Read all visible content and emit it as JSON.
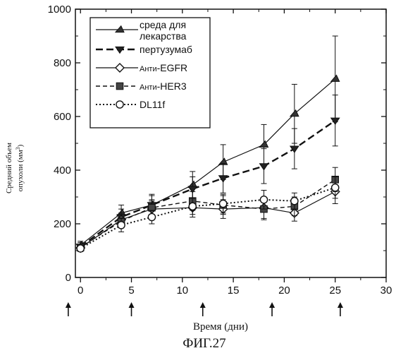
{
  "figure_caption": "ФИГ.27",
  "chart_data": {
    "type": "line",
    "title": "",
    "xlabel": "Время (дни)",
    "ylabel_line1": "Средний объем",
    "ylabel_line2": "опухоли (мм",
    "ylabel_unit_sup": "3",
    "ylabel_line2_end": ")",
    "xlim": [
      -0.5,
      30
    ],
    "ylim": [
      0,
      1000
    ],
    "x_ticks": [
      0,
      5,
      10,
      15,
      20,
      25,
      30
    ],
    "y_ticks": [
      0,
      200,
      400,
      600,
      800,
      1000
    ],
    "x_tick_labels": [
      "0",
      "5",
      "10",
      "15",
      "20",
      "25",
      "30"
    ],
    "y_tick_labels": [
      "0",
      "200",
      "400",
      "600",
      "800",
      "1000"
    ],
    "dosing_days": [
      -1.2,
      5,
      12,
      18.8,
      25.5
    ],
    "legend_placement": "top-left",
    "series": [
      {
        "name": "среда для лекарства",
        "name_line2": "лекарства",
        "name_line1": "среда для",
        "marker": "triangle",
        "dash": "solid",
        "x": [
          0,
          4,
          7,
          11,
          14,
          18,
          21,
          25
        ],
        "y": [
          120,
          240,
          270,
          345,
          430,
          495,
          610,
          740
        ],
        "err": [
          15,
          30,
          40,
          50,
          65,
          75,
          110,
          160
        ]
      },
      {
        "name": "пертузумаб",
        "marker": "triangle-down",
        "dash": "long",
        "x": [
          0,
          4,
          7,
          11,
          14,
          18,
          21,
          25
        ],
        "y": [
          115,
          225,
          270,
          330,
          370,
          415,
          480,
          585
        ],
        "err": [
          15,
          30,
          35,
          45,
          55,
          65,
          75,
          95
        ]
      },
      {
        "name": "Анти-EGFR",
        "name_prefix": "Анти",
        "name_suffix": "-EGFR",
        "marker": "diamond",
        "dash": "solid",
        "x": [
          0,
          4,
          7,
          11,
          14,
          18,
          21,
          25
        ],
        "y": [
          110,
          215,
          255,
          260,
          255,
          260,
          240,
          320
        ],
        "err": [
          12,
          25,
          30,
          35,
          35,
          40,
          30,
          45
        ]
      },
      {
        "name": "Анти-HER3",
        "name_prefix": "Анти",
        "name_suffix": "-HER3",
        "marker": "square",
        "dash": "medium",
        "x": [
          0,
          4,
          7,
          11,
          14,
          18,
          21,
          25
        ],
        "y": [
          112,
          210,
          260,
          285,
          270,
          255,
          265,
          365
        ],
        "err": [
          12,
          25,
          30,
          35,
          35,
          40,
          35,
          45
        ]
      },
      {
        "name": "DL11f",
        "marker": "circle",
        "dash": "dotted",
        "x": [
          0,
          4,
          7,
          11,
          14,
          18,
          21,
          25
        ],
        "y": [
          108,
          195,
          225,
          265,
          275,
          290,
          285,
          335
        ],
        "err": [
          12,
          25,
          25,
          30,
          35,
          35,
          30,
          40
        ]
      }
    ]
  }
}
